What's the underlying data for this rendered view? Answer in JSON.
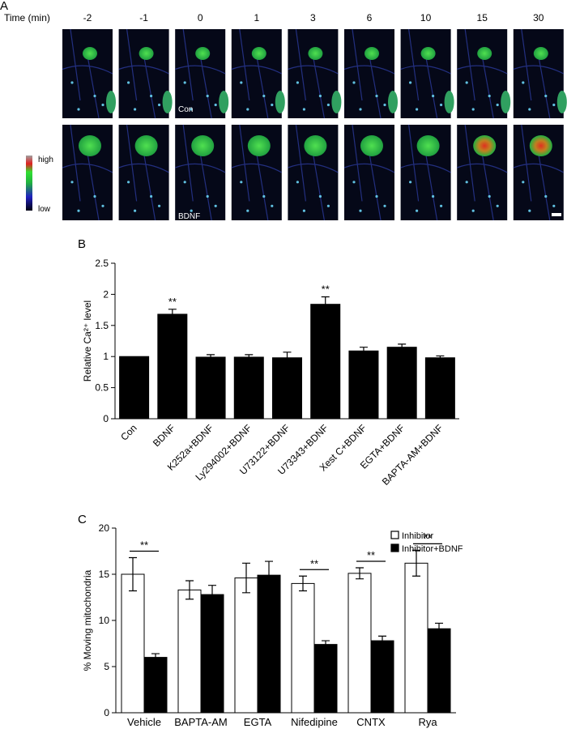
{
  "figure": {
    "panel_labels": [
      "A",
      "B",
      "C"
    ],
    "time_label": "Time (min)",
    "times": [
      "-2",
      "-1",
      "0",
      "1",
      "3",
      "6",
      "10",
      "15",
      "30"
    ],
    "row_labels": [
      "Con",
      "BDNF"
    ],
    "colorbar": {
      "high": "high",
      "low": "low"
    }
  },
  "chart_data": [
    {
      "type": "bar",
      "ylabel": "Relative Ca²⁺ level",
      "categories": [
        "Con",
        "BDNF",
        "K252a+BDNF",
        "Ly294002+BDNF",
        "U73122+BDNF",
        "U73343+BDNF",
        "Xest C+BDNF",
        "EGTA+BDNF",
        "BAPTA-AM+BDNF"
      ],
      "values": [
        1.0,
        1.68,
        0.99,
        0.99,
        0.98,
        1.84,
        1.09,
        1.15,
        0.98
      ],
      "errors": [
        0,
        0.08,
        0.04,
        0.04,
        0.09,
        0.12,
        0.06,
        0.05,
        0.03
      ],
      "significance": [
        null,
        "**",
        null,
        null,
        null,
        "**",
        null,
        null,
        null
      ],
      "color": "#000000",
      "ylim": [
        0,
        2.5
      ],
      "yticks": [
        0,
        0.5,
        1,
        1.5,
        2,
        2.5
      ]
    },
    {
      "type": "bar",
      "ylabel": "% Moving mitochondria",
      "categories": [
        "Vehicle",
        "BAPTA-AM",
        "EGTA",
        "Nifedipine",
        "CNTX",
        "Rya"
      ],
      "series": [
        {
          "name": "Inhibitor",
          "color": "#ffffff",
          "values": [
            15.0,
            13.3,
            14.6,
            14.0,
            15.1,
            16.2
          ],
          "errors": [
            1.8,
            1.0,
            1.6,
            0.8,
            0.6,
            1.4
          ]
        },
        {
          "name": "Inhibitor+BDNF",
          "color": "#000000",
          "values": [
            6.0,
            12.8,
            14.9,
            7.4,
            7.8,
            9.1
          ],
          "errors": [
            0.4,
            1.0,
            1.5,
            0.4,
            0.5,
            0.6
          ]
        }
      ],
      "significance": [
        "**",
        null,
        null,
        "**",
        "**",
        "**"
      ],
      "legend": "top-right",
      "ylim": [
        0,
        20
      ],
      "yticks": [
        0,
        5,
        10,
        15,
        20
      ]
    }
  ]
}
